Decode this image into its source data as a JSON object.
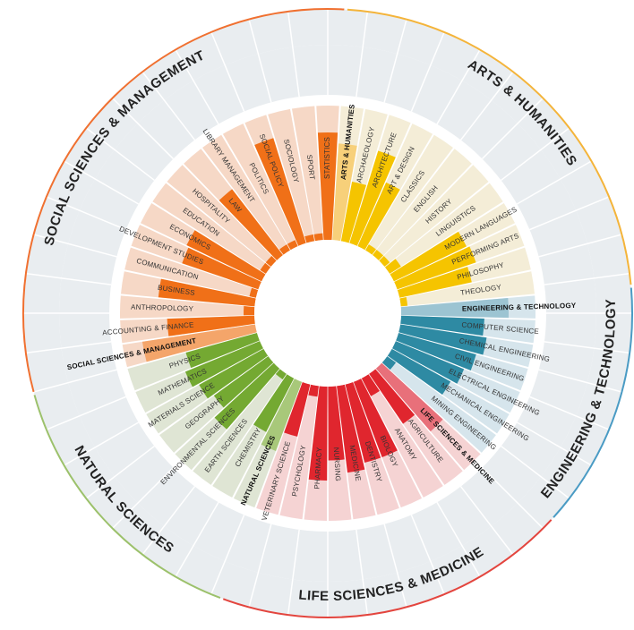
{
  "chart_data": {
    "type": "bar",
    "layout": "radial",
    "categories": [
      {
        "name": "STATISTICS",
        "group": "ssm",
        "value": 0.8
      },
      {
        "name": "ARTS & HUMANITIES",
        "group": "ah",
        "value": 0.72,
        "aggregate": true
      },
      {
        "name": "ARCHAEOLOGY",
        "group": "ah",
        "value": 0.45
      },
      {
        "name": "ARCHITECTURE",
        "group": "ah",
        "value": 0.72
      },
      {
        "name": "ART & DESIGN",
        "group": "ah",
        "value": 0.52
      },
      {
        "name": "CLASSICS",
        "group": "ah",
        "value": 0.05
      },
      {
        "name": "ENGLISH",
        "group": "ah",
        "value": 0.05
      },
      {
        "name": "HISTORY",
        "group": "ah",
        "value": 0.05
      },
      {
        "name": "LINGUISTICS",
        "group": "ah",
        "value": 0.1
      },
      {
        "name": "MODERN LANGUAGES",
        "group": "ah",
        "value": 0.6
      },
      {
        "name": "PERFORMING ARTS",
        "group": "ah",
        "value": 0.62
      },
      {
        "name": "PHILOSOPHY",
        "group": "ah",
        "value": 0.55
      },
      {
        "name": "THEOLOGY",
        "group": "ah",
        "value": 0.05
      },
      {
        "name": "ENGINEERING & TECHNOLOGY",
        "group": "et",
        "value": 0.8,
        "aggregate": true
      },
      {
        "name": "COMPUTER SCIENCE",
        "group": "et",
        "value": 0.62
      },
      {
        "name": "CHEMICAL ENGINEERING",
        "group": "et",
        "value": 0.65
      },
      {
        "name": "CIVIL ENGINEERING",
        "group": "et",
        "value": 0.6
      },
      {
        "name": "ELECTRICAL ENGINEERING",
        "group": "et",
        "value": 0.55
      },
      {
        "name": "MECHANICAL ENGINEERING",
        "group": "et",
        "value": 0.5
      },
      {
        "name": "MINING ENGINEERING",
        "group": "et",
        "value": 0.08
      },
      {
        "name": "LIFE SCIENCES & MEDICINE",
        "group": "lsm",
        "value": 0.62,
        "aggregate": true
      },
      {
        "name": "AGRICULTURE",
        "group": "lsm",
        "value": 0.45
      },
      {
        "name": "ANATOMY",
        "group": "lsm",
        "value": 0.15
      },
      {
        "name": "BIOLOGY",
        "group": "lsm",
        "value": 0.6
      },
      {
        "name": "DENTISTRY",
        "group": "lsm",
        "value": 0.6
      },
      {
        "name": "MEDICINE",
        "group": "lsm",
        "value": 0.65
      },
      {
        "name": "NURSING",
        "group": "lsm",
        "value": 0.55
      },
      {
        "name": "PHARMACY",
        "group": "lsm",
        "value": 0.7
      },
      {
        "name": "PSYCHOLOGY",
        "group": "lsm",
        "value": 0.08
      },
      {
        "name": "VETERINARY SCIENCE",
        "group": "lsm",
        "value": 0.4
      },
      {
        "name": "NATURAL SCIENCES",
        "group": "ns",
        "value": 0.55,
        "aggregate": true
      },
      {
        "name": "CHEMISTRY",
        "group": "ns",
        "value": 0.45
      },
      {
        "name": "EARTH SCIENCES",
        "group": "ns",
        "value": 0.05
      },
      {
        "name": "ENVIRONMENTAL SCIENCES",
        "group": "ns",
        "value": 0.6
      },
      {
        "name": "GEOGRAPHY",
        "group": "ns",
        "value": 0.5
      },
      {
        "name": "MATERIALS SCIENCE",
        "group": "ns",
        "value": 0.55
      },
      {
        "name": "MATHEMATICS",
        "group": "ns",
        "value": 0.6
      },
      {
        "name": "PHYSICS",
        "group": "ns",
        "value": 0.55
      },
      {
        "name": "SOCIAL SCIENCES & MANAGEMENT",
        "group": "ssm",
        "value": 0.85,
        "aggregate": true
      },
      {
        "name": "ACCOUNTING & FINANCE",
        "group": "ssm",
        "value": 0.65
      },
      {
        "name": "ANTHROPOLOGY",
        "group": "ssm",
        "value": 0.08
      },
      {
        "name": "BUSINESS",
        "group": "ssm",
        "value": 0.72
      },
      {
        "name": "COMMUNICATION",
        "group": "ssm",
        "value": 0.05
      },
      {
        "name": "DEVELOPMENT STUDIES",
        "group": "ssm",
        "value": 0.6
      },
      {
        "name": "ECONOMICS",
        "group": "ssm",
        "value": 0.62
      },
      {
        "name": "EDUCATION",
        "group": "ssm",
        "value": 0.05
      },
      {
        "name": "HOSPITALITY",
        "group": "ssm",
        "value": 0.05
      },
      {
        "name": "LAW",
        "group": "ssm",
        "value": 0.62
      },
      {
        "name": "LIBRARY MANAGEMENT",
        "group": "ssm",
        "value": 0.05
      },
      {
        "name": "POLITICS",
        "group": "ssm",
        "value": 0.05
      },
      {
        "name": "SOCIAL POLICY",
        "group": "ssm",
        "value": 0.82
      },
      {
        "name": "SOCIOLOGY",
        "group": "ssm",
        "value": 0.05
      },
      {
        "name": "SPORT",
        "group": "ssm",
        "value": 0.05
      }
    ],
    "groups": [
      {
        "id": "ah",
        "label": "ARTS & HUMANITIES",
        "color": "#f5c400",
        "bg": "#f4edd7",
        "ring": "#f4b43a"
      },
      {
        "id": "et",
        "label": "ENGINEERING & TECHNOLOGY",
        "color": "#2e8aa3",
        "bg": "#d6e5ec",
        "ring": "#4a9bc4"
      },
      {
        "id": "lsm",
        "label": "LIFE SCIENCES & MEDICINE",
        "color": "#e0262e",
        "bg": "#f5d3d3",
        "ring": "#e3453e"
      },
      {
        "id": "ns",
        "label": "NATURAL SCIENCES",
        "color": "#74a932",
        "bg": "#dfe5d4",
        "ring": "#9cc16b"
      },
      {
        "id": "ssm",
        "label": "SOCIAL SCIENCES & MANAGEMENT",
        "color": "#f07018",
        "bg": "#f6d8c6",
        "ring": "#f07030"
      }
    ]
  }
}
